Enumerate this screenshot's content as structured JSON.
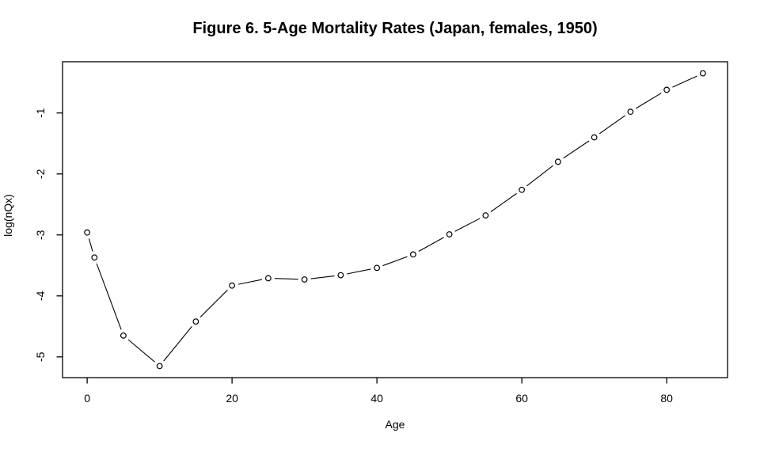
{
  "chart_data": {
    "type": "line",
    "title": "Figure 6. 5-Age Mortality Rates (Japan, females, 1950)",
    "xlabel": "Age",
    "ylabel": "log(nQx)",
    "x": [
      0,
      1,
      5,
      10,
      15,
      20,
      25,
      30,
      35,
      40,
      45,
      50,
      55,
      60,
      65,
      70,
      75,
      80,
      85
    ],
    "y": [
      -2.96,
      -3.37,
      -4.65,
      -5.15,
      -4.42,
      -3.83,
      -3.71,
      -3.73,
      -3.66,
      -3.54,
      -3.32,
      -2.99,
      -2.68,
      -2.26,
      -1.8,
      -1.4,
      -0.98,
      -0.62,
      -0.35
    ],
    "x_ticks": [
      0,
      20,
      40,
      60,
      80
    ],
    "y_ticks": [
      -1,
      -2,
      -3,
      -4,
      -5
    ],
    "xlim": [
      -3.4,
      88.4
    ],
    "ylim": [
      -5.34,
      -0.16
    ],
    "grid": false,
    "legend_position": "none",
    "marker": "open-circle",
    "line_style": "solid",
    "colors": {
      "line": "#000000",
      "marker_stroke": "#000000",
      "text": "#000000",
      "background": "#ffffff"
    }
  }
}
